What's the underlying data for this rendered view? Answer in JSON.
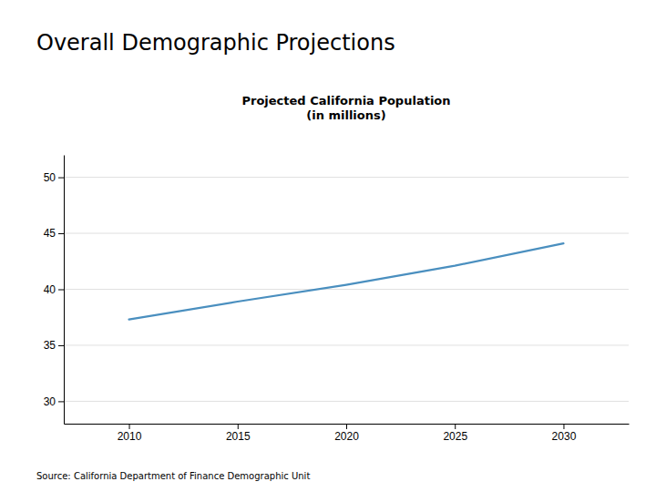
{
  "chart_data": {
    "type": "line",
    "title": "Overall Demographic Projections",
    "subtitle": "Projected California Population\n(in millions)",
    "annotations": [
      "Source: California Department of Finance Demographic Unit"
    ],
    "x": [
      2010,
      2015,
      2020,
      2025,
      2030
    ],
    "values": [
      37.3,
      38.9,
      40.4,
      42.1,
      44.1
    ],
    "color": "#4a8fbf",
    "xlim": [
      2007,
      2033
    ],
    "ylim": [
      28,
      52
    ],
    "xticks": [
      2010,
      2015,
      2020,
      2025,
      2030
    ],
    "yticks": [
      30,
      35,
      40,
      45,
      50
    ],
    "grid": true
  }
}
